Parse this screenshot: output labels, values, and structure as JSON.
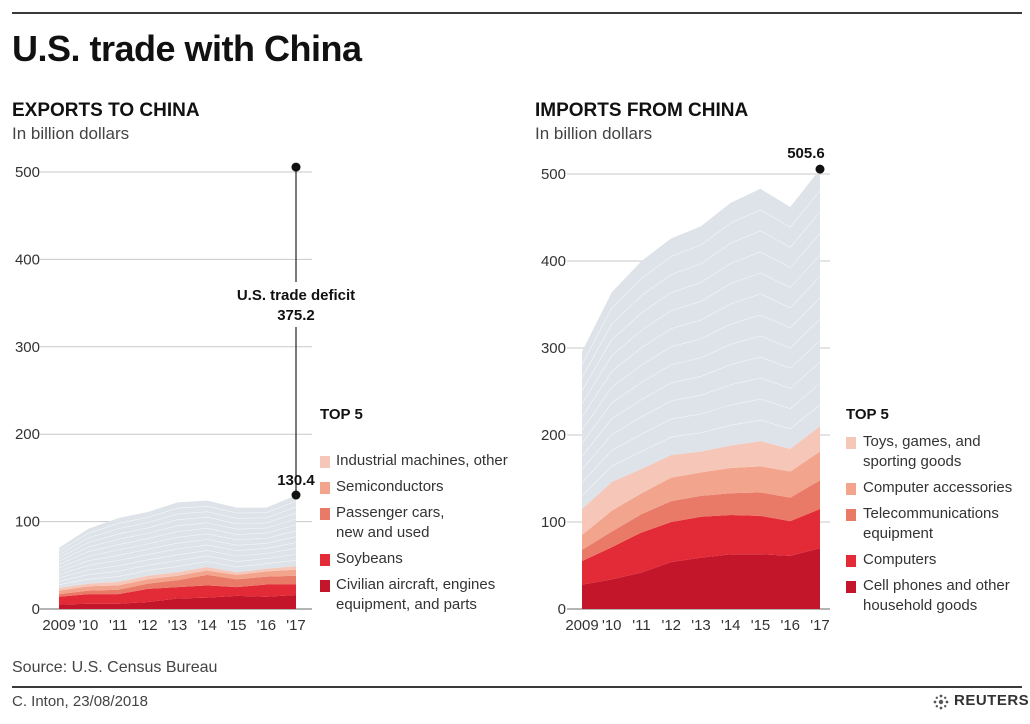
{
  "title": "U.S. trade with China",
  "exports": {
    "title": "EXPORTS TO CHINA",
    "subtitle": "In billion dollars",
    "legend_title": "TOP 5",
    "legend": [
      {
        "label_lines": [
          "Industrial machines, other"
        ],
        "color": "#f6c7b9"
      },
      {
        "label_lines": [
          "Semiconductors"
        ],
        "color": "#f2a48d"
      },
      {
        "label_lines": [
          "Passenger cars,",
          "new and used"
        ],
        "color": "#ea7a68"
      },
      {
        "label_lines": [
          "Soybeans"
        ],
        "color": "#e32a37"
      },
      {
        "label_lines": [
          "Civilian aircraft, engines",
          "equipment, and parts"
        ],
        "color": "#c4162a"
      }
    ],
    "annotation_total": "130.4",
    "deficit_label": "U.S. trade deficit",
    "deficit_value": "375.2"
  },
  "imports": {
    "title": "IMPORTS FROM CHINA",
    "subtitle": "In billion dollars",
    "legend_title": "TOP 5",
    "legend": [
      {
        "label_lines": [
          "Toys, games, and",
          "sporting goods"
        ],
        "color": "#f6c7b9"
      },
      {
        "label_lines": [
          "Computer accessories"
        ],
        "color": "#f2a48d"
      },
      {
        "label_lines": [
          "Telecommunications",
          "equipment"
        ],
        "color": "#ea7a68"
      },
      {
        "label_lines": [
          "Computers"
        ],
        "color": "#e32a37"
      },
      {
        "label_lines": [
          "Cell phones and other",
          "household goods"
        ],
        "color": "#c4162a"
      }
    ],
    "annotation_total": "505.6"
  },
  "chart_data": [
    {
      "type": "area",
      "title": "EXPORTS TO CHINA",
      "ylabel": "In billion dollars",
      "x": [
        "2009",
        "'10",
        "'11",
        "'12",
        "'13",
        "'14",
        "'15",
        "'16",
        "'17"
      ],
      "ylim": [
        0,
        500
      ],
      "yticks": [
        0,
        100,
        200,
        300,
        400,
        500
      ],
      "series": [
        {
          "name": "Civilian aircraft, engines equipment, and parts",
          "values": [
            5,
            6,
            6,
            8,
            12,
            13,
            15,
            14,
            16
          ]
        },
        {
          "name": "Soybeans",
          "values": [
            9,
            11,
            11,
            15,
            13,
            14,
            10,
            14,
            12
          ]
        },
        {
          "name": "Passenger cars, new and used",
          "values": [
            3,
            4,
            5,
            6,
            8,
            12,
            9,
            9,
            10
          ]
        },
        {
          "name": "Semiconductors",
          "values": [
            4,
            5,
            5,
            5,
            5,
            5,
            5,
            6,
            7
          ]
        },
        {
          "name": "Industrial machines, other",
          "values": [
            3,
            3,
            4,
            4,
            4,
            4,
            3,
            3,
            4
          ]
        },
        {
          "name": "Other",
          "values": [
            46,
            63,
            73,
            73,
            80,
            76,
            74,
            70,
            81
          ]
        }
      ],
      "total": [
        70,
        92,
        104,
        111,
        122,
        124,
        116,
        116,
        130.4
      ],
      "annotation": {
        "label": "130.4",
        "deficit_label": "U.S. trade deficit",
        "deficit_value": 375.2,
        "deficit_top": 505.6
      }
    },
    {
      "type": "area",
      "title": "IMPORTS FROM CHINA",
      "ylabel": "In billion dollars",
      "x": [
        "2009",
        "'10",
        "'11",
        "'12",
        "'13",
        "'14",
        "'15",
        "'16",
        "'17"
      ],
      "ylim": [
        0,
        500
      ],
      "yticks": [
        0,
        100,
        200,
        300,
        400,
        500
      ],
      "series": [
        {
          "name": "Cell phones and other household goods",
          "values": [
            28,
            34,
            42,
            54,
            59,
            63,
            63,
            61,
            70
          ]
        },
        {
          "name": "Computers",
          "values": [
            27,
            37,
            46,
            46,
            47,
            45,
            44,
            40,
            45
          ]
        },
        {
          "name": "Telecommunications equipment",
          "values": [
            13,
            18,
            21,
            24,
            24,
            25,
            27,
            27,
            33
          ]
        },
        {
          "name": "Computer accessories",
          "values": [
            17,
            24,
            24,
            27,
            27,
            29,
            30,
            30,
            33
          ]
        },
        {
          "name": "Toys, games, and sporting goods",
          "values": [
            30,
            33,
            28,
            26,
            24,
            26,
            29,
            26,
            29
          ]
        },
        {
          "name": "Other",
          "values": [
            181,
            218,
            239,
            249,
            259,
            279,
            290,
            278,
            295.6
          ]
        }
      ],
      "total": [
        296,
        364,
        400,
        426,
        440,
        467,
        483,
        462,
        505.6
      ],
      "annotation": {
        "label": "505.6"
      }
    }
  ],
  "source": "Source: U.S. Census Bureau",
  "credit": "C. Inton, 23/08/2018",
  "brand": "REUTERS"
}
